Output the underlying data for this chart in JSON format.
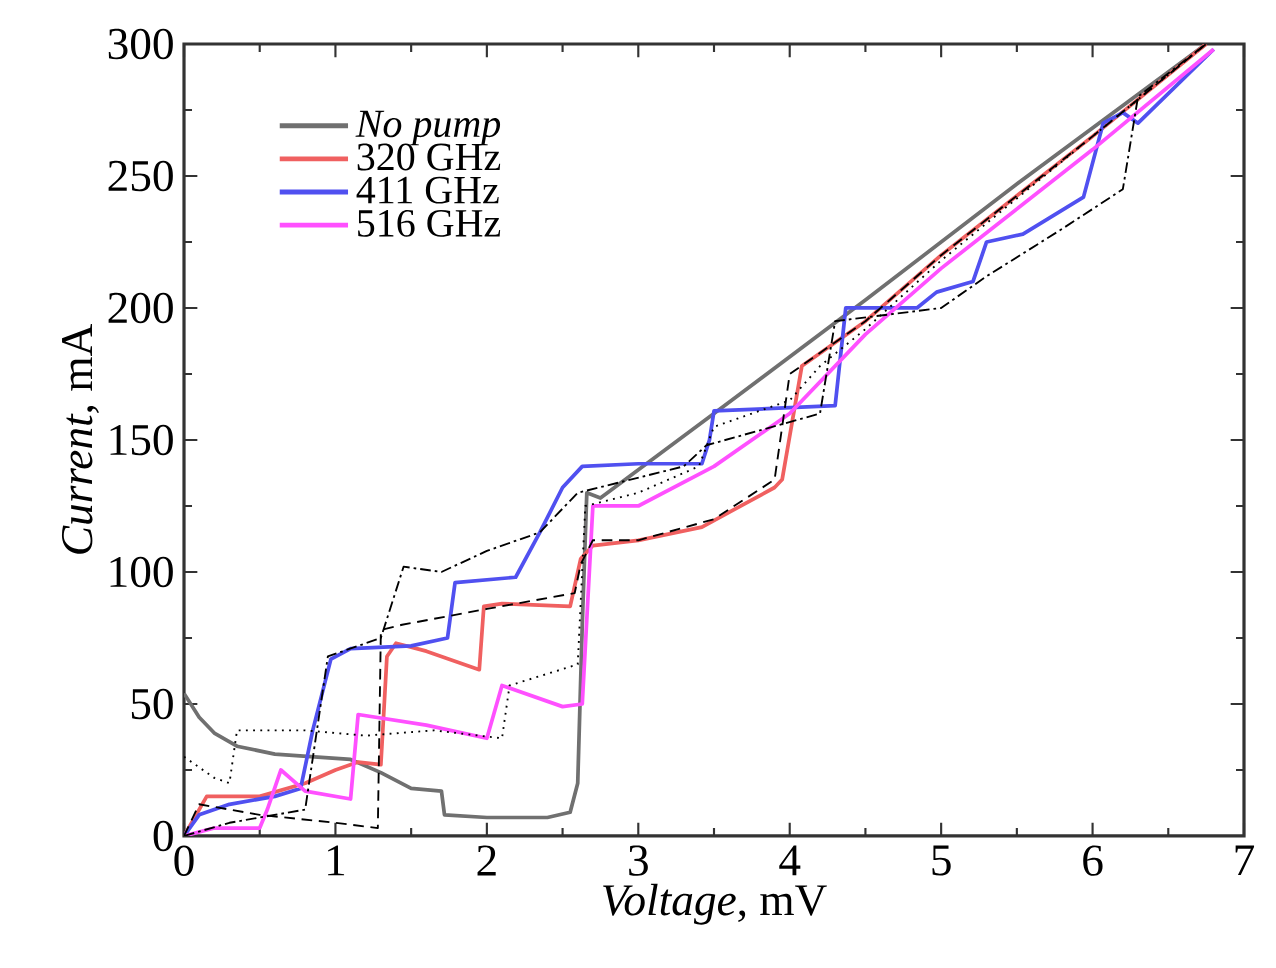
{
  "chart_data": {
    "type": "line",
    "xlabel": "*Voltage*, mV",
    "ylabel": "*Current*, mA",
    "xlim": [
      0,
      7
    ],
    "ylim": [
      0,
      300
    ],
    "xticks": [
      0,
      1,
      2,
      3,
      4,
      5,
      6,
      7
    ],
    "yticks": [
      0,
      50,
      100,
      150,
      200,
      250,
      300
    ],
    "grid": false,
    "legend": "top left",
    "marker": "none",
    "series": [
      {
        "name": "*No pump*",
        "color": "#707070",
        "line_style": "solid",
        "x": [
          0,
          0.1,
          0.2,
          0.35,
          0.6,
          0.86,
          1.1,
          1.3,
          1.5,
          1.7,
          1.72,
          2.0,
          2.4,
          2.55,
          2.6,
          2.63,
          2.66,
          2.75,
          3.5,
          4.5,
          5.5,
          6.75
        ],
        "values": [
          54,
          45,
          39,
          34,
          31,
          30,
          29,
          24,
          18,
          17,
          8,
          7,
          7,
          9,
          20,
          80,
          130,
          128,
          160,
          203,
          247,
          300
        ]
      },
      {
        "name": "320 GHz",
        "color": "#f06060",
        "line_style": "solid",
        "x": [
          0,
          0.1,
          0.15,
          0.5,
          0.8,
          1.0,
          1.15,
          1.3,
          1.34,
          1.4,
          1.6,
          1.95,
          1.98,
          2.1,
          2.55,
          2.62,
          2.7,
          3.0,
          3.42,
          3.9,
          3.95,
          4.08,
          4.5,
          5.0,
          6.0,
          6.75
        ],
        "values": [
          0,
          10,
          15,
          15,
          20,
          25,
          28,
          27,
          68,
          73,
          70,
          63,
          87,
          88,
          87,
          105,
          110,
          112,
          117,
          132,
          135,
          178,
          195,
          220,
          265,
          300
        ]
      },
      {
        "name": "411 GHz",
        "color": "#5050f0",
        "line_style": "solid",
        "x": [
          0,
          0.1,
          0.3,
          0.6,
          0.77,
          0.85,
          0.97,
          1.1,
          1.5,
          1.74,
          1.79,
          2.19,
          2.35,
          2.5,
          2.63,
          3.0,
          3.42,
          3.47,
          3.5,
          4.3,
          4.37,
          4.84,
          4.97,
          5.21,
          5.3,
          5.54,
          5.94,
          6.07,
          6.2,
          6.3,
          6.8
        ],
        "values": [
          0,
          8,
          12,
          15,
          18,
          40,
          67,
          71,
          72,
          75,
          96,
          98,
          115,
          132,
          140,
          141,
          141,
          150,
          161,
          163,
          200,
          200,
          206,
          210,
          225,
          228,
          242,
          270,
          274,
          270,
          298
        ]
      },
      {
        "name": "516 GHz",
        "color": "#ff50ff",
        "line_style": "solid",
        "x": [
          0,
          0.2,
          0.5,
          0.55,
          0.64,
          0.8,
          1.1,
          1.15,
          1.6,
          2.0,
          2.1,
          2.5,
          2.63,
          2.7,
          3.0,
          3.5,
          4.0,
          4.5,
          5.0,
          6.0,
          6.8
        ],
        "values": [
          0,
          3,
          3,
          10,
          25,
          17,
          14,
          46,
          42,
          37,
          57,
          49,
          50,
          125,
          125,
          140,
          160,
          190,
          215,
          260,
          298
        ]
      },
      {
        "color": "#000000",
        "line_style": "dashed",
        "x": [
          0,
          0.1,
          0.5,
          1.0,
          1.28,
          1.3,
          1.44,
          2.0,
          2.58,
          2.62,
          2.7,
          3.0,
          3.5,
          3.9,
          4.0,
          4.5,
          5.0,
          6.0,
          6.75
        ],
        "values": [
          0,
          12,
          8,
          5,
          3,
          78,
          80,
          86,
          92,
          103,
          112,
          112,
          120,
          135,
          175,
          195,
          220,
          265,
          300
        ]
      },
      {
        "color": "#000000",
        "line_style": "dotted",
        "x": [
          0,
          0.2,
          0.3,
          0.35,
          0.8,
          1.2,
          1.65,
          2.1,
          2.15,
          2.6,
          2.65,
          3.0,
          3.4,
          3.5,
          4.0,
          4.2,
          4.5,
          5.0,
          6.0,
          6.75
        ],
        "values": [
          30,
          22,
          20,
          40,
          40,
          38,
          40,
          37,
          57,
          65,
          125,
          130,
          140,
          155,
          165,
          178,
          192,
          218,
          265,
          300
        ]
      },
      {
        "color": "#000000",
        "line_style": "dashdot",
        "x": [
          0,
          0.3,
          0.8,
          0.95,
          1.3,
          1.45,
          1.7,
          2.0,
          2.35,
          2.6,
          3.3,
          3.45,
          4.2,
          4.3,
          5.0,
          5.3,
          5.8,
          6.2,
          6.3,
          6.75
        ],
        "values": [
          0,
          5,
          10,
          68,
          75,
          102,
          100,
          108,
          115,
          130,
          140,
          148,
          160,
          195,
          200,
          212,
          230,
          245,
          280,
          300
        ]
      }
    ]
  }
}
